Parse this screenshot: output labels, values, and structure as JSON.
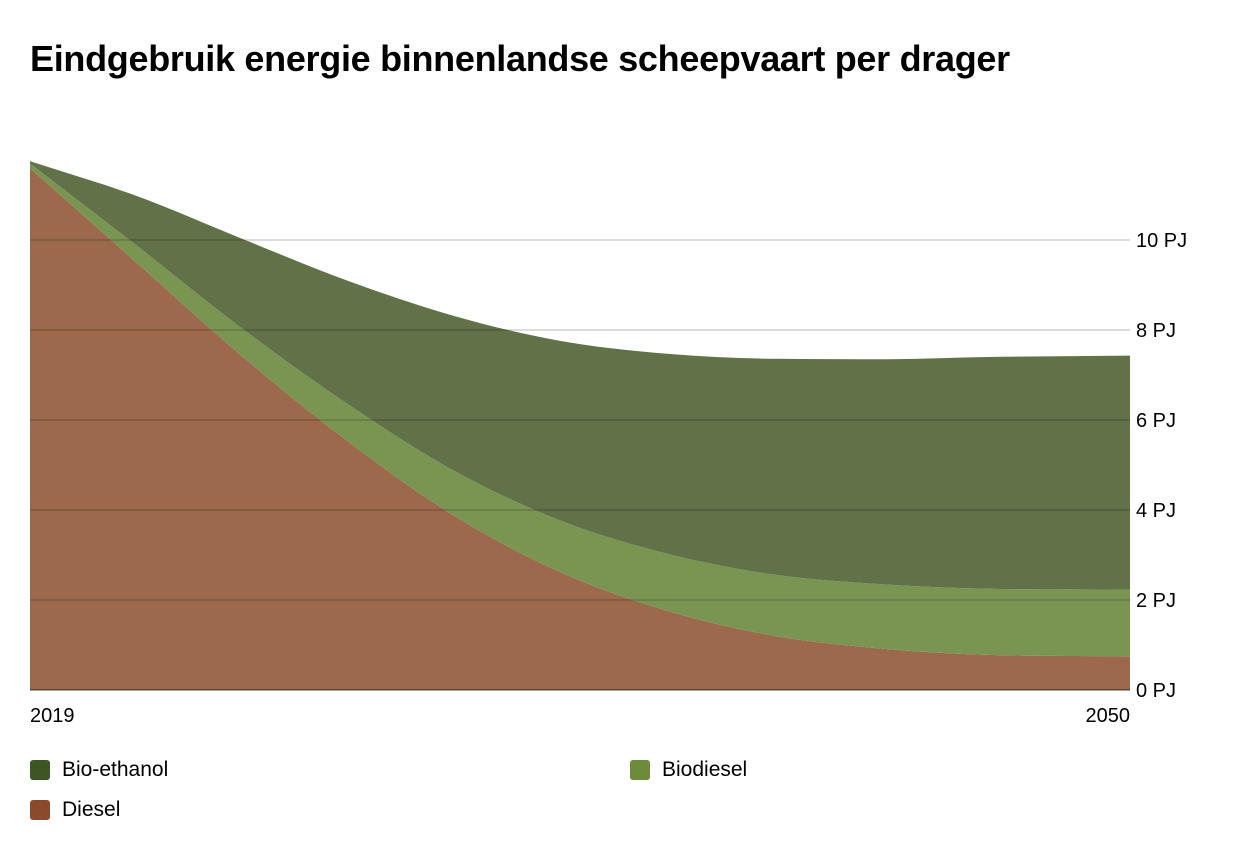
{
  "chart_data": {
    "type": "area",
    "stacked": true,
    "title": "Eindgebruik energie binnenlandse scheepvaart per drager",
    "x": [
      2019,
      2022,
      2025,
      2028,
      2031,
      2034,
      2037,
      2040,
      2043,
      2046,
      2050
    ],
    "x_tick_labels": [
      "2019",
      "2050"
    ],
    "y_unit": "PJ",
    "ylim": [
      0,
      12
    ],
    "y_ticks": [
      0,
      2,
      4,
      6,
      8,
      10
    ],
    "y_tick_labels": [
      "0 PJ",
      "2 PJ",
      "4 PJ",
      "6 PJ",
      "8 PJ",
      "10 PJ"
    ],
    "grid": true,
    "y_axis_position": "right",
    "legend_position": "bottom",
    "series": [
      {
        "name": "Diesel",
        "color": "#8b4a2b",
        "area_color": "#9c694c",
        "values": [
          11.6,
          9.5,
          7.4,
          5.5,
          3.85,
          2.6,
          1.75,
          1.2,
          0.92,
          0.78,
          0.75
        ]
      },
      {
        "name": "Biodiesel",
        "color": "#6d8b3a",
        "area_color": "#7a9451",
        "values": [
          0.1,
          0.38,
          0.62,
          0.83,
          1.0,
          1.15,
          1.27,
          1.36,
          1.43,
          1.47,
          1.48
        ]
      },
      {
        "name": "Bio-ethanol",
        "color": "#3e5524",
        "area_color": "#617148",
        "values": [
          0.05,
          1.1,
          2.0,
          2.75,
          3.45,
          4.0,
          4.45,
          4.8,
          5.0,
          5.15,
          5.2
        ]
      }
    ],
    "legend": [
      {
        "name": "Bio-ethanol",
        "color": "#3e5524"
      },
      {
        "name": "Biodiesel",
        "color": "#6d8b3a"
      },
      {
        "name": "Diesel",
        "color": "#8b4a2b"
      }
    ]
  }
}
